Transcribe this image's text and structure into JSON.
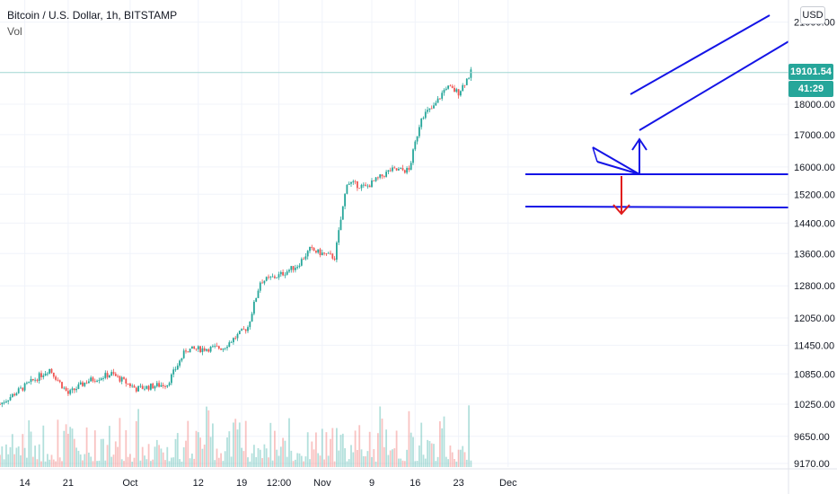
{
  "legend": {
    "title": "Bitcoin / U.S. Dollar, 1h, BITSTAMP",
    "volume_label": "Vol"
  },
  "currency_button": "USD",
  "last_price_label": "19101.54",
  "countdown_label": "41:29",
  "colors": {
    "up": "#26a69a",
    "down": "#ef5350",
    "drawing_blue": "#1414e6",
    "arrow_red": "#e01b1b",
    "last_price_line": "#9fd6d2"
  },
  "drawings": [
    "ascending-channel",
    "support-line-15700",
    "support-line-14750",
    "triangle-pattern",
    "breakout-up-arrow",
    "breakdown-down-arrow"
  ],
  "chart_data": {
    "type": "candlestick",
    "title": "Bitcoin / U.S. Dollar, 1h, BITSTAMP",
    "y_axis": {
      "scale": "log",
      "range": [
        9050,
        22000
      ],
      "ticks": [
        "21000.00",
        "18000.00",
        "17000.00",
        "16000.00",
        "15200.00",
        "14400.00",
        "13600.00",
        "12800.00",
        "12050.00",
        "11450.00",
        "10850.00",
        "10250.00",
        "9650.00",
        "9170.00"
      ]
    },
    "x_axis": {
      "ticks": [
        "14",
        "21",
        "Oct",
        "12",
        "19",
        "12:00",
        "Nov",
        "9",
        "16",
        "23",
        "Dec"
      ]
    },
    "approx_close_path": [
      {
        "date": "Sep 10",
        "close": 10250
      },
      {
        "date": "Sep 14",
        "close": 10600
      },
      {
        "date": "Sep 18",
        "close": 10950
      },
      {
        "date": "Sep 21",
        "close": 10450
      },
      {
        "date": "Sep 24",
        "close": 10700
      },
      {
        "date": "Sep 28",
        "close": 10850
      },
      {
        "date": "Oct 2",
        "close": 10550
      },
      {
        "date": "Oct 7",
        "close": 10650
      },
      {
        "date": "Oct 10",
        "close": 11350
      },
      {
        "date": "Oct 16",
        "close": 11400
      },
      {
        "date": "Oct 20",
        "close": 11850
      },
      {
        "date": "Oct 22",
        "close": 12900
      },
      {
        "date": "Oct 25",
        "close": 13050
      },
      {
        "date": "Oct 28",
        "close": 13300
      },
      {
        "date": "Oct 30",
        "close": 13700
      },
      {
        "date": "Nov 3",
        "close": 13500
      },
      {
        "date": "Nov 5",
        "close": 15550
      },
      {
        "date": "Nov 8",
        "close": 15400
      },
      {
        "date": "Nov 12",
        "close": 15900
      },
      {
        "date": "Nov 15",
        "close": 15900
      },
      {
        "date": "Nov 17",
        "close": 17600
      },
      {
        "date": "Nov 19",
        "close": 17900
      },
      {
        "date": "Nov 21",
        "close": 18600
      },
      {
        "date": "Nov 23",
        "close": 18400
      },
      {
        "date": "Nov 25",
        "close": 19101.54
      }
    ],
    "last_price": 19101.54,
    "volume_series": "Vol",
    "grid": true,
    "legend_position": "top-left"
  }
}
